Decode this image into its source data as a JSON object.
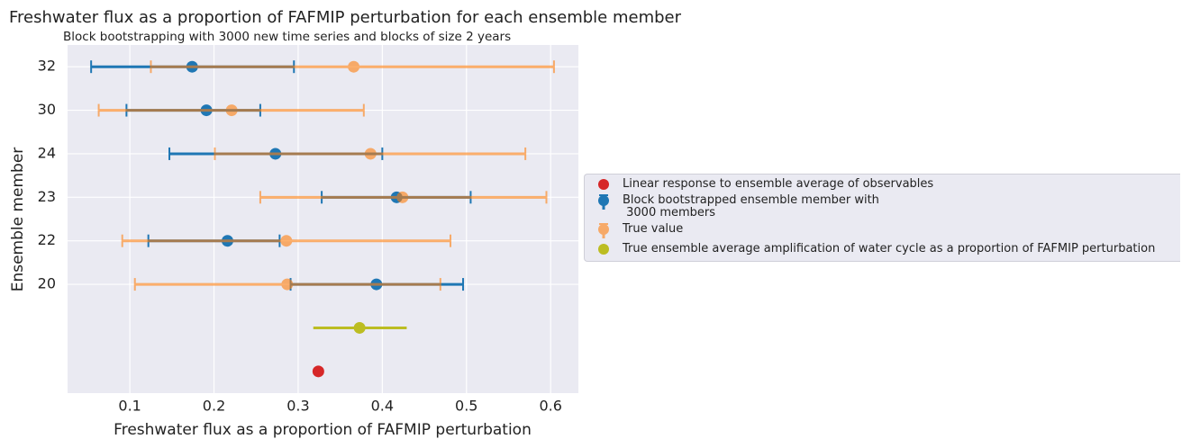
{
  "chart_data": {
    "type": "errorbar",
    "title": "Freshwater flux as a proportion of FAFMIP perturbation for each ensemble member",
    "subtitle": "Block bootstrapping with 3000 new time series and blocks of size 2 years",
    "x_label": "Freshwater flux as a proportion of FAFMIP perturbation",
    "y_label": "Ensemble member",
    "categories": [
      "32",
      "30",
      "24",
      "23",
      "22",
      "20",
      null,
      null
    ],
    "xlim": [
      0.026,
      0.633
    ],
    "xticks": [
      0.1,
      0.2,
      0.3,
      0.4,
      0.5,
      0.6
    ],
    "grid": true,
    "legend": "right",
    "series": [
      {
        "name": "Linear response to ensemble average of observables",
        "color": "#d62728",
        "values": [
          null,
          null,
          null,
          null,
          null,
          null,
          null,
          0.324
        ]
      },
      {
        "name": "Block bootstrapped ensemble member with\n 3000 members",
        "color": "#1f77b4",
        "caps": true,
        "values": [
          0.174,
          0.191,
          0.273,
          0.417,
          0.216,
          0.393,
          null,
          null
        ],
        "lower": [
          0.054,
          0.096,
          0.147,
          0.328,
          0.122,
          0.291,
          null,
          null
        ],
        "upper": [
          0.295,
          0.255,
          0.4,
          0.505,
          0.278,
          0.496,
          null,
          null
        ]
      },
      {
        "name": "True value",
        "color": "#ff7f0e",
        "caps": true,
        "alpha": 0.6,
        "values": [
          0.366,
          0.221,
          0.386,
          0.424,
          0.286,
          0.287,
          null,
          null
        ],
        "lower": [
          0.125,
          0.063,
          0.201,
          0.255,
          0.091,
          0.106,
          null,
          null
        ],
        "upper": [
          0.604,
          0.378,
          0.57,
          0.595,
          0.481,
          0.469,
          null,
          null
        ]
      },
      {
        "name": "True ensemble average amplification of water cycle as a proportion of FAFMIP perturbation",
        "color": "#bcbd22",
        "caps": false,
        "values": [
          null,
          null,
          null,
          null,
          null,
          null,
          0.373,
          null
        ],
        "lower": [
          null,
          null,
          null,
          null,
          null,
          null,
          0.318,
          null
        ],
        "upper": [
          null,
          null,
          null,
          null,
          null,
          null,
          0.429,
          null
        ]
      }
    ]
  }
}
